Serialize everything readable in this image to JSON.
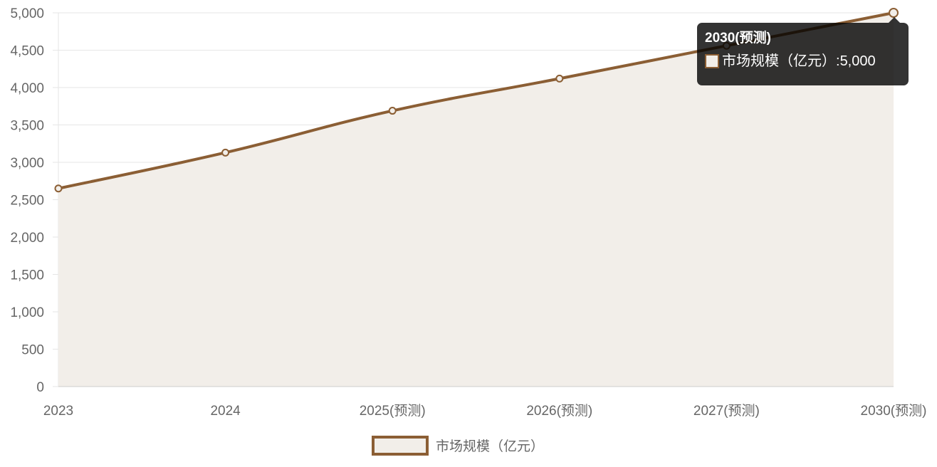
{
  "chart_data": {
    "type": "line",
    "fill": true,
    "categories": [
      "2023",
      "2024",
      "2025(预测)",
      "2026(预测)",
      "2027(预测)",
      "2030(预测)"
    ],
    "series": [
      {
        "name": "市场规模（亿元）",
        "values": [
          2650,
          3130,
          3690,
          4120,
          4560,
          5000
        ]
      }
    ],
    "ylim": [
      0,
      5000
    ],
    "yticks": [
      "0",
      "500",
      "1,000",
      "1,500",
      "2,000",
      "2,500",
      "3,000",
      "3,500",
      "4,000",
      "4,500",
      "5,000"
    ],
    "ytick_values": [
      0,
      500,
      1000,
      1500,
      2000,
      2500,
      3000,
      3500,
      4000,
      4500,
      5000
    ],
    "grid": true,
    "legend": "bottom",
    "colors": {
      "line": "#8B5E34",
      "fill": "#f2eee9",
      "grid": "#e6e6e6",
      "axis": "#cccccc",
      "tick_text": "#666666"
    }
  },
  "tooltip": {
    "title": "2030(预测)",
    "label": "市场规模（亿元）",
    "separator": ": ",
    "value": "5,000"
  }
}
